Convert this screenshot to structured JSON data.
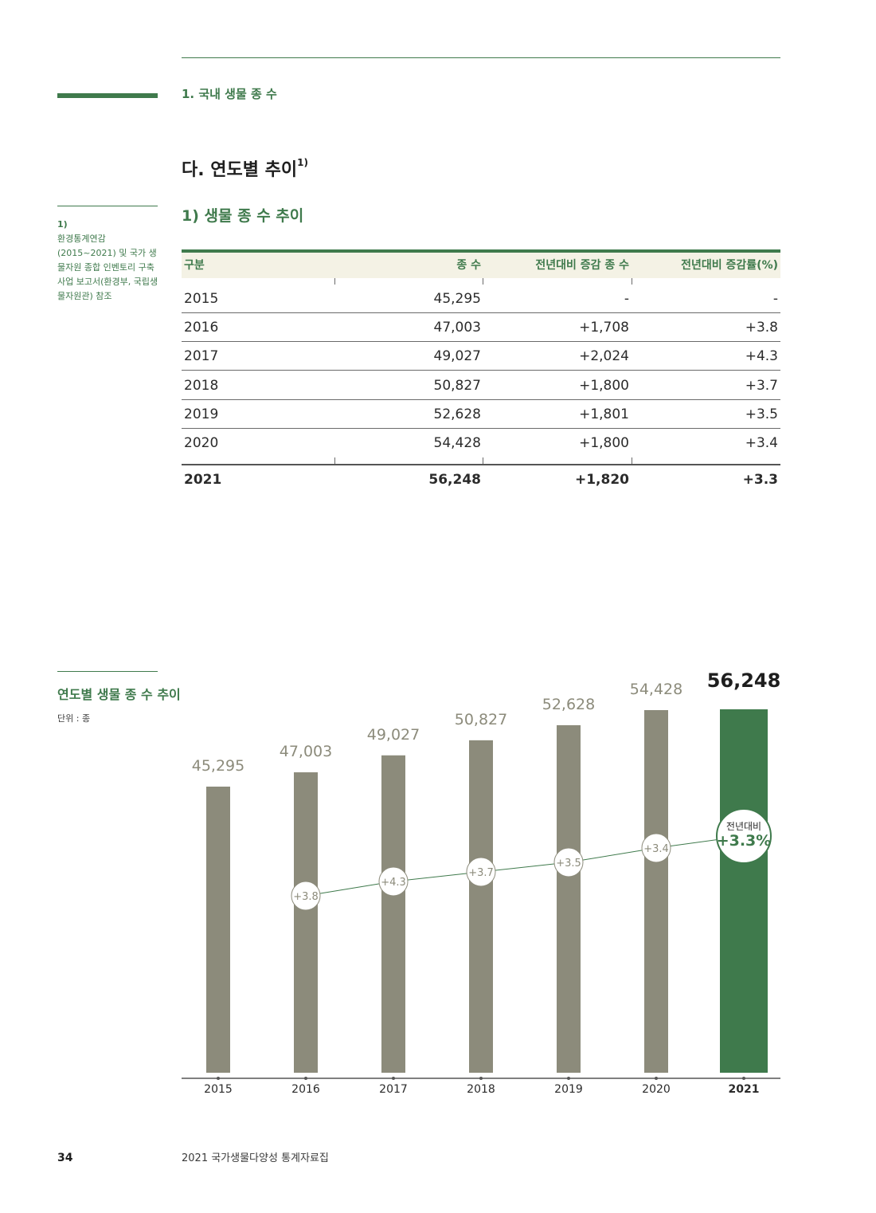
{
  "section": {
    "title": "1. 국내 생물 종 수"
  },
  "heading": {
    "text": "다. 연도별 추이",
    "sup": "1)"
  },
  "subheading": "1) 생물 종 수 추이",
  "footnote": {
    "num": "1)",
    "text": "환경통계연감(2015~2021) 및 국가 생물자원 종합 인벤토리 구축 사업 보고서(환경부, 국립생물자원관) 참조"
  },
  "table": {
    "headers": [
      "구분",
      "종 수",
      "전년대비 증감 종 수",
      "전년대비 증감률(%)"
    ],
    "rows": [
      [
        "2015",
        "45,295",
        "-",
        "-"
      ],
      [
        "2016",
        "47,003",
        "+1,708",
        "+3.8"
      ],
      [
        "2017",
        "49,027",
        "+2,024",
        "+4.3"
      ],
      [
        "2018",
        "50,827",
        "+1,800",
        "+3.7"
      ],
      [
        "2019",
        "52,628",
        "+1,801",
        "+3.5"
      ],
      [
        "2020",
        "54,428",
        "+1,800",
        "+3.4"
      ]
    ],
    "total": [
      "2021",
      "56,248",
      "+1,820",
      "+3.3"
    ]
  },
  "chart_caption": {
    "title": "연도별 생물 종 수 추이",
    "unit": "단위 : 종"
  },
  "chart_data": {
    "type": "bar",
    "categories": [
      "2015",
      "2016",
      "2017",
      "2018",
      "2019",
      "2020",
      "2021"
    ],
    "values": [
      45295,
      47003,
      49027,
      50827,
      52628,
      54428,
      56248
    ],
    "value_labels": [
      "45,295",
      "47,003",
      "49,027",
      "50,827",
      "52,628",
      "54,428",
      "56,248"
    ],
    "growth_rate": [
      null,
      3.8,
      4.3,
      3.7,
      3.5,
      3.4,
      3.3
    ],
    "growth_labels": [
      "",
      "+3.8",
      "+4.3",
      "+3.7",
      "+3.5",
      "+3.4",
      "+3.3%"
    ],
    "highlight_label": "전년대비",
    "highlight_index": 6,
    "colors": {
      "bar": "#8c8b7b",
      "highlight": "#3f7a4c",
      "line": "#3f7a4c"
    }
  },
  "footer": {
    "page": "34",
    "text": "2021 국가생물다양성 통계자료집"
  }
}
